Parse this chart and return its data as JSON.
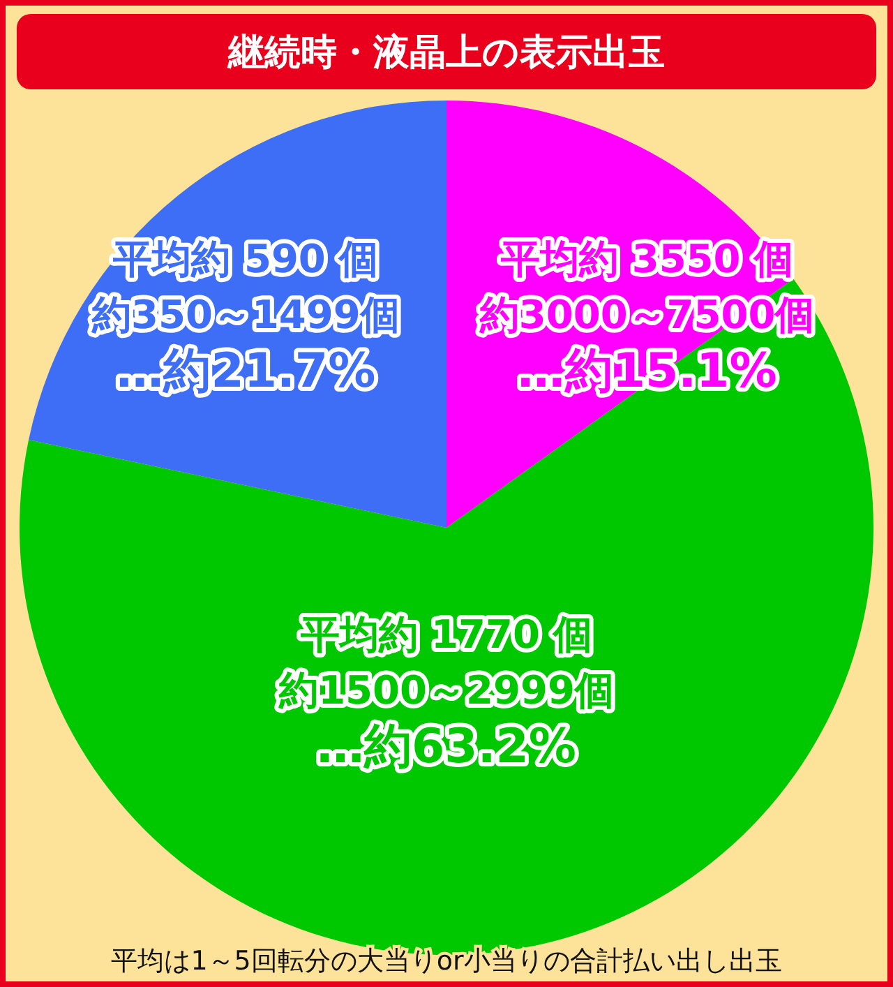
{
  "chart_data": {
    "type": "pie",
    "title": "継続時・液晶上の表示出玉",
    "categories": [
      "平均約 3550 個",
      "平均約 1770 個",
      "平均約 590 個"
    ],
    "values": [
      15.1,
      63.2,
      21.7
    ],
    "value_labels": [
      "…約15.1%",
      "…約63.2%",
      "…約21.7%"
    ],
    "colors": [
      "#ff00ff",
      "#00c800",
      "#3d6ef5"
    ],
    "annotations": [
      "約3000～7500個",
      "約1500～2999個",
      "約350～1499個",
      "平均は1～5回転分の大当りor小当りの合計払い出し出玉"
    ]
  }
}
